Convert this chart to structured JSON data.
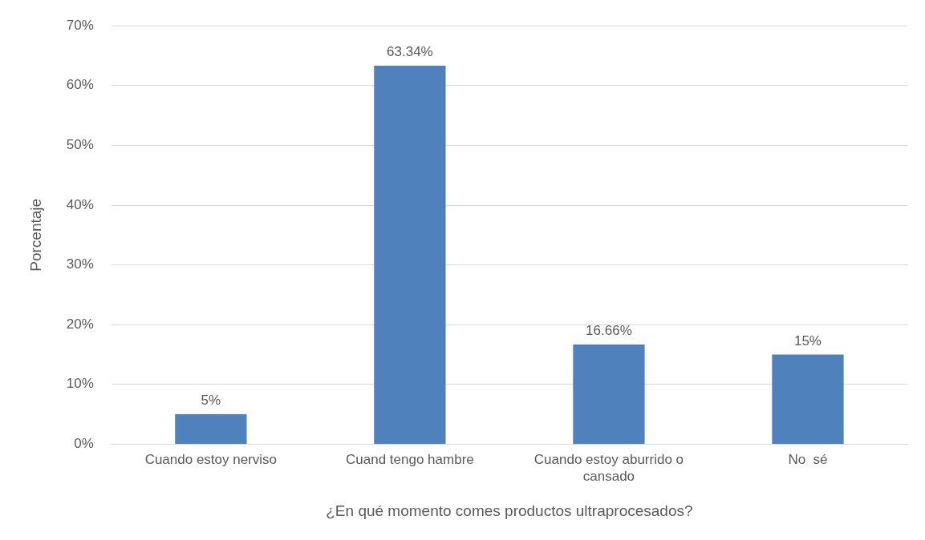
{
  "chart_data": {
    "type": "bar",
    "xlabel": "¿En qué momento comes productos ultraprocesados?",
    "ylabel": "Porcentaje",
    "categories": [
      "Cuando estoy nerviso",
      "Cuand tengo hambre",
      "Cuando estoy aburrido o cansado",
      "No  sé"
    ],
    "values": [
      5,
      63.34,
      16.66,
      15
    ],
    "value_labels": [
      "5%",
      "63.34%",
      "16.66%",
      "15%"
    ],
    "color": "#4f81bd",
    "ylim": [
      0,
      70
    ],
    "yticks": [
      {
        "value": 0,
        "label": "0%"
      },
      {
        "value": 10,
        "label": "10%"
      },
      {
        "value": 20,
        "label": "20%"
      },
      {
        "value": 30,
        "label": "30%"
      },
      {
        "value": 40,
        "label": "40%"
      },
      {
        "value": 50,
        "label": "50%"
      },
      {
        "value": 60,
        "label": "60%"
      },
      {
        "value": 70,
        "label": "70%"
      }
    ],
    "grid": "y",
    "legend": false
  }
}
